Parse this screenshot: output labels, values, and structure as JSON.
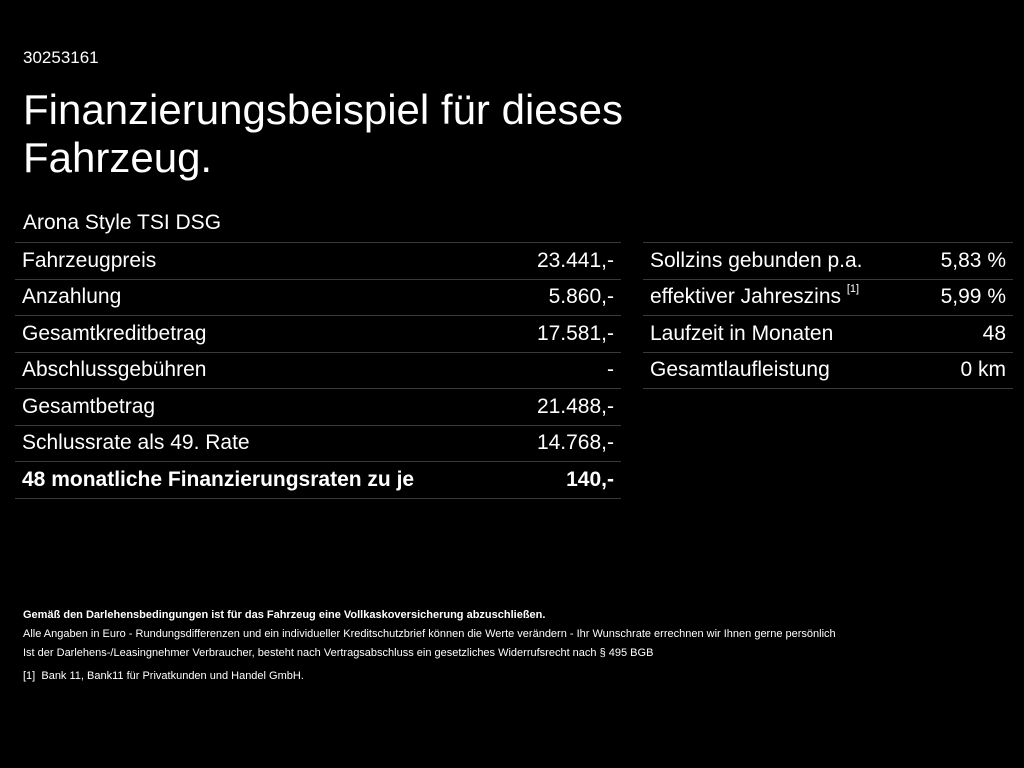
{
  "offer_id": "30253161",
  "title": "Finanzierungsbeispiel für dieses Fahrzeug.",
  "model": "Arona Style TSI DSG",
  "left_rows": [
    {
      "label": "Fahrzeugpreis",
      "value": "23.441,-"
    },
    {
      "label": "Anzahlung",
      "value": "5.860,-"
    },
    {
      "label": "Gesamtkreditbetrag",
      "value": "17.581,-"
    },
    {
      "label": "Abschlussgebühren",
      "value": "-"
    },
    {
      "label": "Gesamtbetrag",
      "value": "21.488,-"
    },
    {
      "label": "Schlussrate als 49. Rate",
      "value": "14.768,-"
    },
    {
      "label": "48 monatliche Finanzierungsraten zu je",
      "value": "140,-"
    }
  ],
  "right_rows": [
    {
      "label": "Sollzins gebunden p.a.",
      "value": "5,83 %"
    },
    {
      "label": "effektiver Jahreszins",
      "sup": "[1]",
      "value": "5,99 %"
    },
    {
      "label": "Laufzeit in Monaten",
      "value": "48"
    },
    {
      "label": "Gesamtlaufleistung",
      "value": "0 km"
    }
  ],
  "notes": {
    "bold": "Gemäß den Darlehensbedingungen ist für das Fahrzeug eine Vollkaskoversicherung abzuschließen.",
    "line1": "Alle Angaben in Euro - Rundungsdifferenzen und ein individueller Kreditschutzbrief können die Werte verändern - Ihr Wunschrate errechnen wir Ihnen gerne persönlich",
    "line2": "Ist der Darlehens-/Leasingnehmer Verbraucher, besteht nach Vertragsabschluss ein gesetzliches Widerrufsrecht nach § 495 BGB",
    "footnote_mark": "[1]",
    "footnote": "Bank 11, Bank11 für Privatkunden und Handel GmbH."
  }
}
